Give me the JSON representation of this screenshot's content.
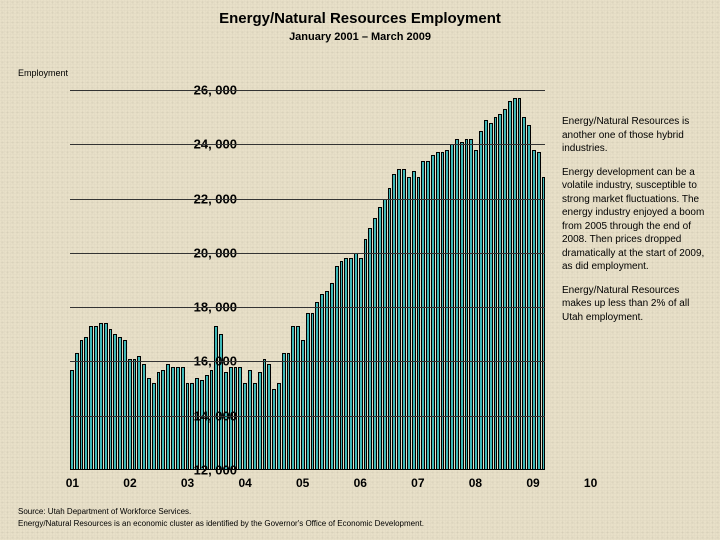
{
  "title": "Energy/Natural Resources Employment",
  "subtitle": "January 2001 – March 2009",
  "title_fontsize": 15,
  "subtitle_fontsize": 11,
  "y_axis_label": "Employment",
  "y_ticks": [
    "26, 000",
    "24, 000",
    "22, 000",
    "20, 000",
    "18, 000",
    "16, 000",
    "14, 000",
    "12, 000"
  ],
  "y_min": 12000,
  "y_max": 26000,
  "x_ticks": [
    "01",
    "02",
    "03",
    "04",
    "05",
    "06",
    "07",
    "08",
    "09",
    "10"
  ],
  "bar_color": "#3fb8b8",
  "bar_border": "#000000",
  "grid_color": "#333333",
  "background_color": "#e8e0c8",
  "values": [
    15700,
    16300,
    16800,
    16900,
    17300,
    17300,
    17400,
    17400,
    17200,
    17000,
    16900,
    16800,
    16100,
    16100,
    16200,
    15900,
    15400,
    15200,
    15600,
    15700,
    15900,
    15800,
    15800,
    15800,
    15200,
    15200,
    15400,
    15300,
    15500,
    15700,
    17300,
    17000,
    15600,
    15800,
    15800,
    15800,
    15200,
    15700,
    15200,
    15600,
    16100,
    15900,
    15000,
    15200,
    16300,
    16300,
    17300,
    17300,
    16800,
    17800,
    17800,
    18200,
    18500,
    18600,
    18900,
    19500,
    19700,
    19800,
    19800,
    20000,
    19800,
    20500,
    20900,
    21300,
    21700,
    22000,
    22400,
    22900,
    23100,
    23100,
    22800,
    23000,
    22800,
    23400,
    23400,
    23600,
    23700,
    23700,
    23800,
    24000,
    24200,
    24100,
    24200,
    24200,
    23800,
    24500,
    24900,
    24800,
    25000,
    25100,
    25300,
    25600,
    25700,
    25700,
    25000,
    24700,
    23800,
    23700,
    22800
  ],
  "side_paragraphs": [
    "Energy/Natural Resources is another one of those hybrid industries.",
    "Energy development can be a volatile industry, susceptible to strong market fluctuations. The energy industry enjoyed a boom from 2005 through the end of 2008. Then prices dropped dramatically at the start of 2009, as did employment.",
    "Energy/Natural Resources makes up less than 2% of all Utah employment."
  ],
  "footer_lines": [
    "Source: Utah Department of Workforce Services.",
    "Energy/Natural Resources is an economic cluster as identified by the Governor's Office of Economic Development."
  ]
}
